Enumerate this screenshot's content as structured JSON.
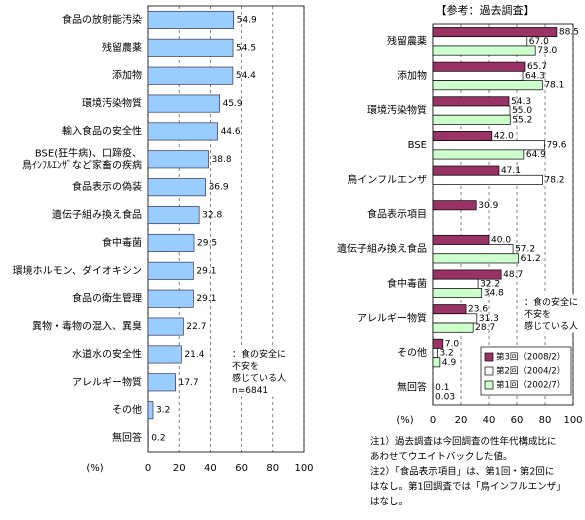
{
  "chart_data": [
    {
      "type": "barh",
      "categories": [
        "食品の放射能汚染",
        "残留農薬",
        "添加物",
        "環境汚染物質",
        "輸入食品の安全性",
        "BSE(狂牛病)、口蹄疫、\n鳥ｲﾝﾌﾙｴﾝｻﾞなど家畜の疾病",
        "食品表示の偽装",
        "遺伝子組み換え食品",
        "食中毒菌",
        "環境ホルモン、ダイオキシン",
        "食品の衛生管理",
        "異物・毒物の混入、異臭",
        "水道水の安全性",
        "アレルギー物質",
        "その他",
        "無回答"
      ],
      "values": [
        54.9,
        54.5,
        54.4,
        45.9,
        44.6,
        38.8,
        36.9,
        32.8,
        29.5,
        29.1,
        29.1,
        22.7,
        21.4,
        17.7,
        3.2,
        0.2
      ],
      "color": "#99ccff",
      "xlim": [
        0,
        100
      ],
      "xticks": [
        0,
        20,
        40,
        60,
        80,
        100
      ],
      "grid": true,
      "xlabel": "(%)",
      "annotation": "：食の安全に\n不安を\n感じている人\nn=6841"
    },
    {
      "type": "barh",
      "title": "【参考：過去調査】",
      "categories": [
        "残留農薬",
        "添加物",
        "環境汚染物質",
        "BSE",
        "鳥インフルエンザ",
        "食品表示項目",
        "遺伝子組み換え食品",
        "食中毒菌",
        "アレルギー物質",
        "その他",
        "無回答"
      ],
      "series": [
        {
          "name": "第3回（2008/2）",
          "color": "#993366",
          "values": [
            88.5,
            65.7,
            54.3,
            42.0,
            47.1,
            30.9,
            40.0,
            48.7,
            23.6,
            7.0,
            null
          ],
          "value_labels": [
            "88.5",
            "65.7",
            "54.3",
            "42.0",
            "47.1",
            "30.9",
            "40.0",
            "48.7",
            "23.6",
            "7.0",
            null
          ]
        },
        {
          "name": "第2回（2004/2）",
          "color": "#ffffff",
          "values": [
            67.0,
            64.3,
            55.0,
            79.6,
            78.2,
            null,
            57.2,
            32.2,
            31.3,
            3.2,
            0.1
          ],
          "value_labels": [
            "67.0",
            "64.3",
            "55.0",
            "79.6",
            "78.2",
            null,
            "57.2",
            "32.2",
            "31.3",
            "3.2",
            "0.1"
          ]
        },
        {
          "name": "第1回（2002/7）",
          "color": "#ccffcc",
          "values": [
            73.0,
            78.1,
            55.2,
            64.9,
            null,
            null,
            61.2,
            34.8,
            28.7,
            4.9,
            0.03
          ],
          "value_labels": [
            "73.0",
            "78.1",
            "55.2",
            "64.9",
            null,
            null,
            "61.2",
            "34.8",
            "28.7",
            "4.9",
            "0.03"
          ]
        }
      ],
      "xlim": [
        0,
        100
      ],
      "xticks": [
        0,
        20,
        40,
        60,
        80,
        100
      ],
      "grid": true,
      "xlabel": "(%)",
      "annotation": "：食の安全に\n不安を\n感じている人",
      "legend": "lower-right",
      "notes": [
        "注1）過去調査は今回調査の性年代構成比に",
        "あわせてウエイトバックした値。",
        "注2）「食品表示項目」は、第1回・第2回に",
        "はなし。第1回調査では「鳥インフルエンザ」",
        "はなし。"
      ]
    }
  ]
}
